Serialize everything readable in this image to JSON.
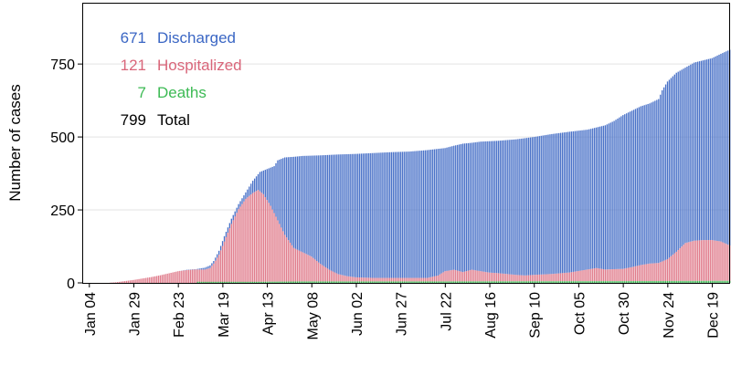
{
  "chart_data": {
    "type": "bar",
    "stacked": true,
    "ylabel": "Number of cases",
    "xlabel": "",
    "ylim": [
      0,
      960
    ],
    "y_ticks": [
      0,
      250,
      500,
      750
    ],
    "x_ticks": [
      "Jan 04",
      "Jan 29",
      "Feb 23",
      "Mar 19",
      "Apr 13",
      "May 08",
      "Jun 02",
      "Jun 27",
      "Jul 22",
      "Aug 16",
      "Sep 10",
      "Oct 05",
      "Oct 30",
      "Nov 24",
      "Dec 19"
    ],
    "x_tick_days": [
      0,
      25,
      50,
      75,
      100,
      125,
      150,
      175,
      200,
      225,
      250,
      275,
      300,
      325,
      350
    ],
    "x_range_days": [
      -4,
      360
    ],
    "legend": [
      {
        "value": "671",
        "label": "Discharged",
        "color": "#3a66c4"
      },
      {
        "value": "121",
        "label": "Hospitalized",
        "color": "#d9667a"
      },
      {
        "value": "7",
        "label": "Deaths",
        "color": "#3cba54"
      },
      {
        "value": "799",
        "label": "Total",
        "color": "#000000"
      }
    ],
    "legend_position": "top-left",
    "grid": "horizontal",
    "colors": {
      "discharged": "#4a72c8",
      "hospitalized": "#e07c8c",
      "deaths": "#3cba54"
    },
    "series": [
      {
        "key": "total",
        "points": [
          [
            0,
            0
          ],
          [
            10,
            0
          ],
          [
            15,
            2
          ],
          [
            20,
            6
          ],
          [
            25,
            10
          ],
          [
            30,
            15
          ],
          [
            35,
            20
          ],
          [
            40,
            26
          ],
          [
            45,
            33
          ],
          [
            50,
            40
          ],
          [
            55,
            45
          ],
          [
            60,
            47
          ],
          [
            65,
            52
          ],
          [
            68,
            60
          ],
          [
            70,
            75
          ],
          [
            73,
            110
          ],
          [
            76,
            160
          ],
          [
            80,
            220
          ],
          [
            84,
            270
          ],
          [
            88,
            310
          ],
          [
            92,
            350
          ],
          [
            96,
            380
          ],
          [
            100,
            390
          ],
          [
            104,
            400
          ],
          [
            106,
            420
          ],
          [
            110,
            430
          ],
          [
            115,
            432
          ],
          [
            120,
            435
          ],
          [
            130,
            437
          ],
          [
            140,
            440
          ],
          [
            150,
            442
          ],
          [
            160,
            445
          ],
          [
            170,
            448
          ],
          [
            180,
            450
          ],
          [
            190,
            455
          ],
          [
            200,
            462
          ],
          [
            205,
            470
          ],
          [
            210,
            477
          ],
          [
            215,
            480
          ],
          [
            220,
            484
          ],
          [
            230,
            487
          ],
          [
            240,
            492
          ],
          [
            250,
            500
          ],
          [
            260,
            510
          ],
          [
            270,
            518
          ],
          [
            280,
            525
          ],
          [
            290,
            540
          ],
          [
            295,
            555
          ],
          [
            300,
            575
          ],
          [
            305,
            590
          ],
          [
            310,
            605
          ],
          [
            315,
            615
          ],
          [
            320,
            630
          ],
          [
            322,
            660
          ],
          [
            325,
            690
          ],
          [
            330,
            720
          ],
          [
            340,
            755
          ],
          [
            350,
            770
          ],
          [
            355,
            785
          ],
          [
            360,
            799
          ]
        ]
      },
      {
        "key": "hospitalized",
        "points": [
          [
            0,
            0
          ],
          [
            10,
            0
          ],
          [
            15,
            2
          ],
          [
            20,
            6
          ],
          [
            25,
            10
          ],
          [
            30,
            15
          ],
          [
            35,
            20
          ],
          [
            40,
            26
          ],
          [
            45,
            33
          ],
          [
            50,
            40
          ],
          [
            55,
            44
          ],
          [
            60,
            46
          ],
          [
            65,
            45
          ],
          [
            68,
            50
          ],
          [
            70,
            65
          ],
          [
            73,
            95
          ],
          [
            76,
            140
          ],
          [
            80,
            200
          ],
          [
            84,
            250
          ],
          [
            88,
            285
          ],
          [
            92,
            305
          ],
          [
            95,
            315
          ],
          [
            98,
            300
          ],
          [
            102,
            260
          ],
          [
            106,
            210
          ],
          [
            110,
            160
          ],
          [
            115,
            115
          ],
          [
            120,
            100
          ],
          [
            125,
            85
          ],
          [
            130,
            60
          ],
          [
            135,
            40
          ],
          [
            140,
            25
          ],
          [
            145,
            18
          ],
          [
            150,
            14
          ],
          [
            160,
            12
          ],
          [
            170,
            12
          ],
          [
            180,
            12
          ],
          [
            190,
            12
          ],
          [
            196,
            20
          ],
          [
            200,
            35
          ],
          [
            205,
            40
          ],
          [
            210,
            32
          ],
          [
            215,
            40
          ],
          [
            220,
            35
          ],
          [
            225,
            30
          ],
          [
            230,
            28
          ],
          [
            235,
            25
          ],
          [
            240,
            22
          ],
          [
            245,
            20
          ],
          [
            250,
            22
          ],
          [
            260,
            25
          ],
          [
            270,
            30
          ],
          [
            280,
            40
          ],
          [
            285,
            45
          ],
          [
            290,
            40
          ],
          [
            300,
            42
          ],
          [
            305,
            48
          ],
          [
            310,
            55
          ],
          [
            315,
            60
          ],
          [
            320,
            62
          ],
          [
            325,
            75
          ],
          [
            330,
            100
          ],
          [
            335,
            130
          ],
          [
            340,
            138
          ],
          [
            345,
            140
          ],
          [
            350,
            140
          ],
          [
            355,
            135
          ],
          [
            360,
            121
          ]
        ]
      },
      {
        "key": "deaths",
        "points": [
          [
            0,
            0
          ],
          [
            60,
            0
          ],
          [
            70,
            1
          ],
          [
            80,
            2
          ],
          [
            90,
            3
          ],
          [
            100,
            4
          ],
          [
            120,
            5
          ],
          [
            200,
            5
          ],
          [
            300,
            6
          ],
          [
            360,
            7
          ]
        ]
      }
    ]
  }
}
